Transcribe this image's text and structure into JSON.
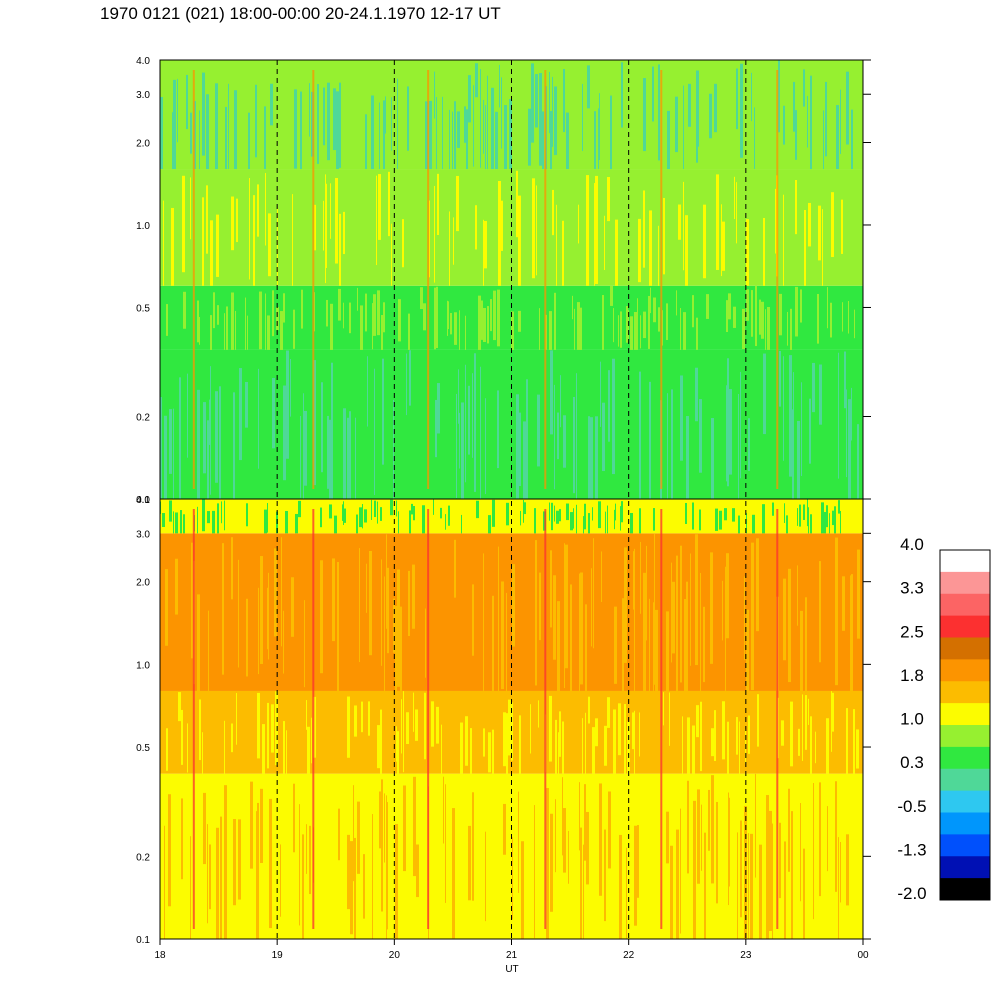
{
  "title": "1970 0121 (021) 18:00-00:00 20-24.1.1970  12-17 UT",
  "colors": {
    "blue_bright": "#2ec8f0",
    "blue_mid": "#3cd2e6",
    "teal": "#4fd898",
    "green": "#30e840",
    "lime": "#96f030",
    "yellow": "#fcfc00",
    "orange_light": "#fcbc00",
    "orange": "#fc9400",
    "dark_orange": "#d47000",
    "red": "#fc3030"
  },
  "chart_data": {
    "type": "heatmap",
    "panels": [
      {
        "name": "upper",
        "ylim": [
          0.1,
          4.0
        ],
        "yscale": "log",
        "yticks": [
          "4.0",
          "3.0",
          "2.0",
          "1.0",
          "0.5",
          "0.2",
          "0.1"
        ],
        "bands": [
          {
            "y_range": [
              0.1,
              0.35
            ],
            "dominant": "green",
            "secondary": "teal"
          },
          {
            "y_range": [
              0.35,
              0.6
            ],
            "dominant": "green",
            "secondary": "lime"
          },
          {
            "y_range": [
              0.6,
              1.6
            ],
            "dominant": "lime",
            "secondary": "yellow"
          },
          {
            "y_range": [
              1.6,
              4.0
            ],
            "dominant": "lime",
            "secondary": "teal"
          }
        ]
      },
      {
        "name": "lower",
        "ylim": [
          0.1,
          4.0
        ],
        "yscale": "log",
        "yticks": [
          "4.0",
          "3.0",
          "2.0",
          "1.0",
          "0.5",
          "0.2",
          "0.1"
        ],
        "bands": [
          {
            "y_range": [
              0.1,
              0.4
            ],
            "dominant": "yellow",
            "secondary": "orange_light"
          },
          {
            "y_range": [
              0.4,
              0.8
            ],
            "dominant": "orange_light",
            "secondary": "yellow"
          },
          {
            "y_range": [
              0.8,
              3.0
            ],
            "dominant": "orange",
            "secondary": "orange_light"
          },
          {
            "y_range": [
              3.0,
              4.0
            ],
            "dominant": "yellow",
            "secondary": "green"
          }
        ]
      }
    ],
    "xaxis": {
      "label": "UT",
      "range": [
        18,
        24
      ],
      "ticks": [
        "18",
        "19",
        "20",
        "21",
        "22",
        "23",
        "00"
      ],
      "dashed_lines_at": [
        19,
        20,
        21,
        22,
        23
      ]
    },
    "colorbar": {
      "levels": [
        "4.0",
        "3.3",
        "2.5",
        "1.8",
        "1.0",
        "0.3",
        "-0.5",
        "-1.3",
        "-2.0"
      ],
      "colors": [
        "#ffffff",
        "#fc9696",
        "#fc6464",
        "#fc3030",
        "#d47000",
        "#fc9400",
        "#fcbc00",
        "#fcfc00",
        "#96f030",
        "#30e840",
        "#4fd898",
        "#2ec8f0",
        "#0096fc",
        "#0050fc",
        "#0010b4",
        "#000000"
      ]
    }
  }
}
